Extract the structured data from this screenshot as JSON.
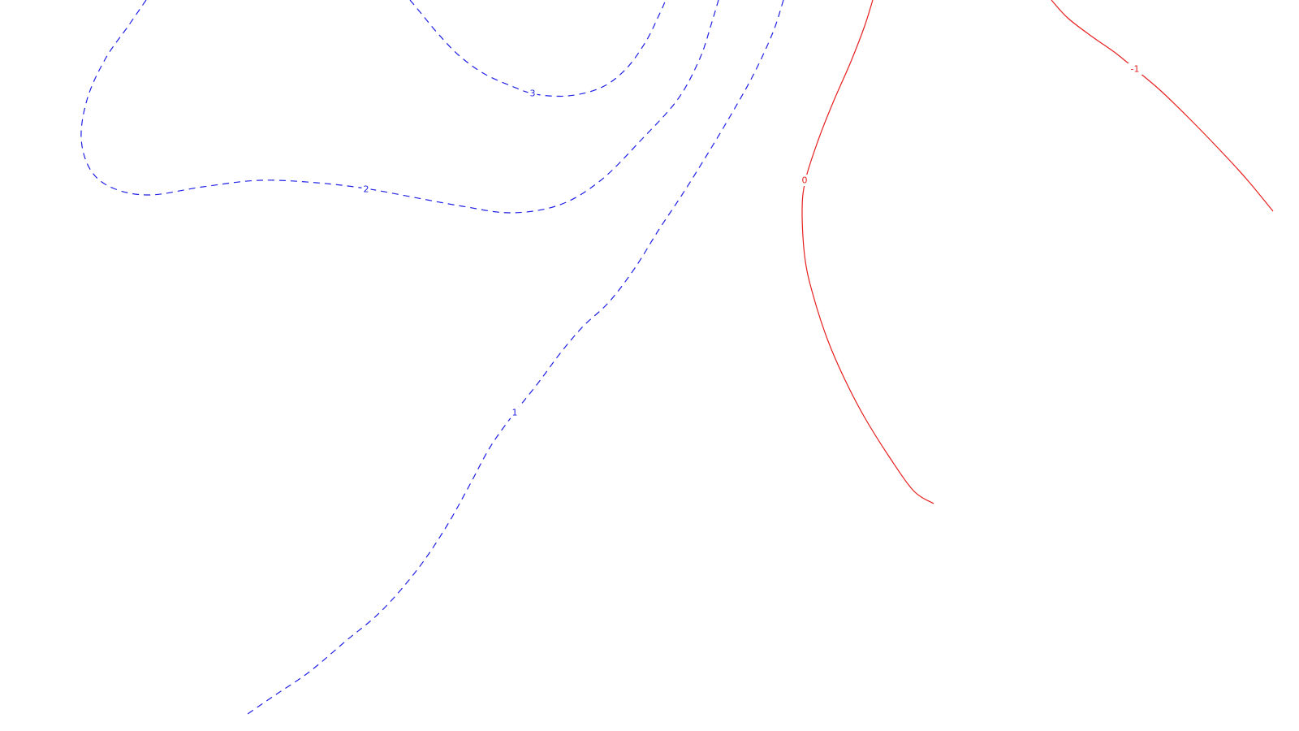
{
  "chart_data": {
    "type": "contour",
    "title": "",
    "xlabel": "",
    "ylabel": "",
    "axes_visible": false,
    "grid": false,
    "legend": "none",
    "negative_style": "solid",
    "positive_style": "dashed",
    "colors": {
      "positive": "#1f1fe6",
      "negative": "#e61f1f",
      "background": "#ffffff"
    },
    "contours": [
      {
        "level": 3,
        "label": "3",
        "sign": "positive",
        "points": [
          [
            505,
            0
          ],
          [
            520,
            18
          ],
          [
            540,
            42
          ],
          [
            565,
            68
          ],
          [
            595,
            90
          ],
          [
            630,
            106
          ],
          [
            660,
            116
          ],
          [
            700,
            118
          ],
          [
            740,
            108
          ],
          [
            770,
            86
          ],
          [
            795,
            52
          ],
          [
            812,
            18
          ],
          [
            820,
            0
          ]
        ]
      },
      {
        "level": 2,
        "label": "2",
        "sign": "positive",
        "points": [
          [
            180,
            0
          ],
          [
            158,
            32
          ],
          [
            130,
            72
          ],
          [
            108,
            120
          ],
          [
            100,
            170
          ],
          [
            112,
            210
          ],
          [
            140,
            232
          ],
          [
            185,
            240
          ],
          [
            250,
            230
          ],
          [
            320,
            222
          ],
          [
            390,
            225
          ],
          [
            450,
            232
          ],
          [
            510,
            243
          ],
          [
            570,
            254
          ],
          [
            630,
            262
          ],
          [
            690,
            252
          ],
          [
            740,
            222
          ],
          [
            790,
            172
          ],
          [
            835,
            122
          ],
          [
            862,
            72
          ],
          [
            876,
            30
          ],
          [
            885,
            0
          ]
        ]
      },
      {
        "level": 1,
        "label": "1",
        "sign": "positive",
        "points": [
          [
            965,
            0
          ],
          [
            952,
            40
          ],
          [
            928,
            92
          ],
          [
            900,
            142
          ],
          [
            870,
            192
          ],
          [
            840,
            240
          ],
          [
            812,
            282
          ],
          [
            782,
            330
          ],
          [
            750,
            372
          ],
          [
            718,
            402
          ],
          [
            690,
            435
          ],
          [
            664,
            470
          ],
          [
            634,
            508
          ],
          [
            604,
            550
          ],
          [
            578,
            598
          ],
          [
            550,
            648
          ],
          [
            515,
            700
          ],
          [
            470,
            752
          ],
          [
            425,
            790
          ],
          [
            380,
            828
          ],
          [
            340,
            855
          ],
          [
            305,
            879
          ]
        ]
      },
      {
        "level": 0,
        "label": "0",
        "sign": "negative",
        "points": [
          [
            1075,
            0
          ],
          [
            1065,
            32
          ],
          [
            1048,
            76
          ],
          [
            1027,
            124
          ],
          [
            1008,
            172
          ],
          [
            992,
            222
          ],
          [
            988,
            262
          ],
          [
            992,
            322
          ],
          [
            1004,
            372
          ],
          [
            1020,
            420
          ],
          [
            1040,
            466
          ],
          [
            1065,
            514
          ],
          [
            1095,
            562
          ],
          [
            1125,
            604
          ],
          [
            1150,
            620
          ]
        ]
      },
      {
        "level": -1,
        "label": "-1",
        "sign": "negative",
        "points": [
          [
            1295,
            0
          ],
          [
            1315,
            22
          ],
          [
            1345,
            45
          ],
          [
            1375,
            66
          ],
          [
            1398,
            85
          ],
          [
            1430,
            112
          ],
          [
            1465,
            146
          ],
          [
            1500,
            182
          ],
          [
            1535,
            220
          ],
          [
            1568,
            260
          ]
        ]
      }
    ],
    "labels": [
      {
        "text": "3",
        "level": 3,
        "at": [
          656,
          115
        ]
      },
      {
        "text": "2",
        "level": 2,
        "at": [
          451,
          233
        ]
      },
      {
        "text": "1",
        "level": 1,
        "at": [
          634,
          508
        ]
      },
      {
        "text": "0",
        "level": 0,
        "at": [
          991,
          222
        ]
      },
      {
        "text": "-1",
        "level": -1,
        "at": [
          1398,
          85
        ]
      }
    ]
  }
}
